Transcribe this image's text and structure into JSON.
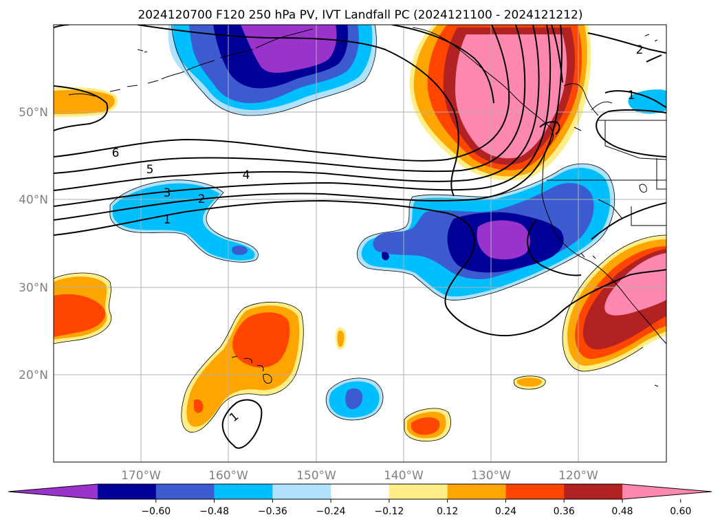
{
  "title": "2024120700 F120 250 hPa PV, IVT Landfall PC (2024121100 - 2024121212)",
  "lat_labels": [
    "50°N",
    "40°N",
    "30°N",
    "20°N"
  ],
  "lon_labels": [
    "170°W",
    "160°W",
    "150°W",
    "140°W",
    "130°W",
    "120°W"
  ],
  "colorbar": {
    "colors": [
      "#9933cc",
      "#000099",
      "#3b5bcf",
      "#00bfff",
      "#b0e2ff",
      "#ffffff",
      "#ffee88",
      "#ffa500",
      "#ff4500",
      "#b22222",
      "#ff88b0"
    ],
    "tick_labels": [
      "−0.60",
      "−0.48",
      "−0.36",
      "−0.24",
      "−0.12",
      "0.12",
      "0.24",
      "0.36",
      "0.48",
      "0.60"
    ]
  },
  "pv_contour_labels": [
    "6",
    "5",
    "4",
    "3",
    "2",
    "1",
    "2",
    "1",
    "1"
  ],
  "colors": {
    "land_outline": "#000000",
    "grid": "#b0b0b0",
    "pv_contour": "#000000"
  }
}
